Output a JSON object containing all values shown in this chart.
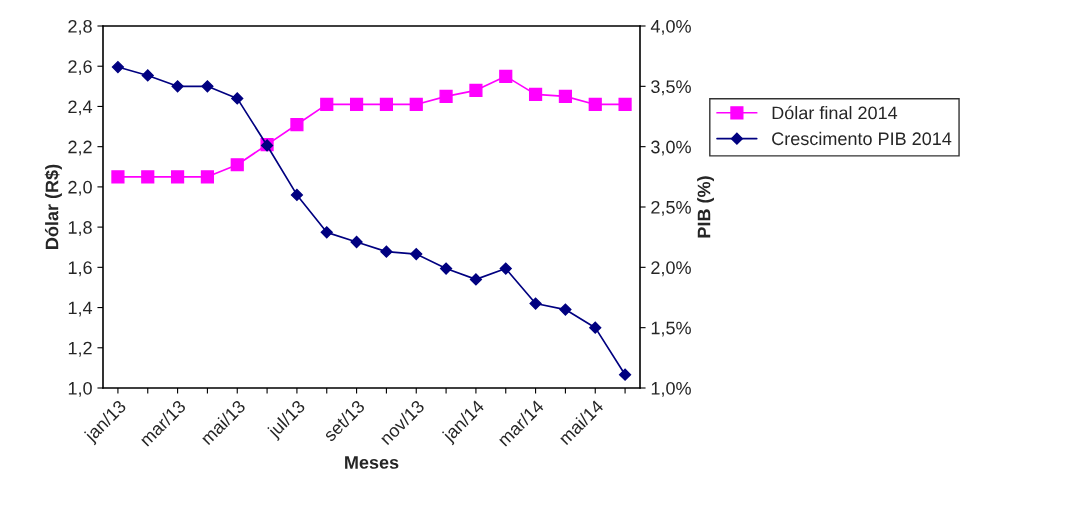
{
  "chart_data": {
    "type": "line",
    "xlabel": "Meses",
    "ylabel": "Dólar (R$)",
    "y2label": "PIB (%)",
    "categories": [
      "jan/13",
      null,
      "mar/13",
      null,
      "mai/13",
      null,
      "jul/13",
      null,
      "set/13",
      null,
      "nov/13",
      null,
      "jan/14",
      null,
      "mar/14",
      null,
      "mai/14",
      null
    ],
    "series": [
      {
        "name": "Dólar final 2014",
        "color": "#ff00ff",
        "marker": "square",
        "values": [
          2.05,
          2.05,
          2.05,
          2.05,
          2.11,
          2.21,
          2.31,
          2.41,
          2.41,
          2.41,
          2.41,
          2.45,
          2.48,
          2.55,
          2.46,
          2.45,
          2.41,
          2.41
        ]
      },
      {
        "name": "Crescimento PIB 2014",
        "color": "#000080",
        "marker": "diamond",
        "axis": "y2",
        "values": [
          3.66,
          3.59,
          3.5,
          3.5,
          3.4,
          3.01,
          2.6,
          2.29,
          2.21,
          2.13,
          2.11,
          1.99,
          1.9,
          1.99,
          1.7,
          1.65,
          1.5,
          1.11
        ]
      }
    ],
    "ylim": [
      1.0,
      2.8
    ],
    "yticks": [
      {
        "value": 1.0,
        "label": "1,0"
      },
      {
        "value": 1.2,
        "label": "1,2"
      },
      {
        "value": 1.4,
        "label": "1,4"
      },
      {
        "value": 1.6,
        "label": "1,6"
      },
      {
        "value": 1.8,
        "label": "1,8"
      },
      {
        "value": 2.0,
        "label": "2,0"
      },
      {
        "value": 2.2,
        "label": "2,2"
      },
      {
        "value": 2.4,
        "label": "2,4"
      },
      {
        "value": 2.6,
        "label": "2,6"
      },
      {
        "value": 2.8,
        "label": "2,8"
      }
    ],
    "y2lim": [
      1.0,
      4.0
    ],
    "y2ticks": [
      {
        "value": 1.0,
        "label": "1,0%"
      },
      {
        "value": 1.5,
        "label": "1,5%"
      },
      {
        "value": 2.0,
        "label": "2,0%"
      },
      {
        "value": 2.5,
        "label": "2,5%"
      },
      {
        "value": 3.0,
        "label": "3,0%"
      },
      {
        "value": 3.5,
        "label": "3,5%"
      },
      {
        "value": 4.0,
        "label": "4,0%"
      }
    ],
    "grid": false,
    "legend": "right"
  }
}
